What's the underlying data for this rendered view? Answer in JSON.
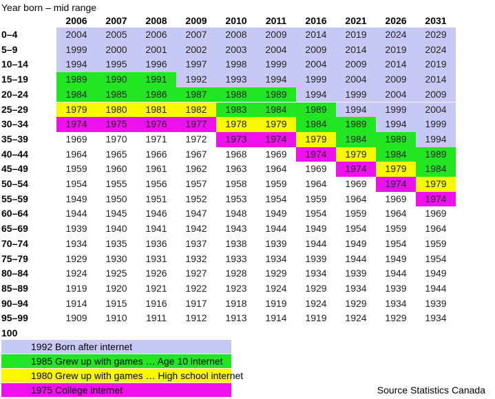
{
  "title": "Year born – mid range",
  "years": [
    "2006",
    "2007",
    "2008",
    "2009",
    "2010",
    "2011",
    "2016",
    "2021",
    "2026",
    "2031"
  ],
  "colors": {
    "lav": "#c8c8f4",
    "grn": "#22e622",
    "yel": "#f8f800",
    "mag": "#ee11ee"
  },
  "rows": [
    {
      "label": "0–4",
      "values": [
        "2004",
        "2005",
        "2006",
        "2007",
        "2008",
        "2009",
        "2014",
        "2019",
        "2024",
        "2029"
      ],
      "fills": [
        "lav",
        "lav",
        "lav",
        "lav",
        "lav",
        "lav",
        "lav",
        "lav",
        "lav",
        "lav"
      ]
    },
    {
      "label": "5–9",
      "values": [
        "1999",
        "2000",
        "2001",
        "2002",
        "2003",
        "2004",
        "2009",
        "2014",
        "2019",
        "2024"
      ],
      "fills": [
        "lav",
        "lav",
        "lav",
        "lav",
        "lav",
        "lav",
        "lav",
        "lav",
        "lav",
        "lav"
      ]
    },
    {
      "label": "10–14",
      "values": [
        "1994",
        "1995",
        "1996",
        "1997",
        "1998",
        "1999",
        "2004",
        "2009",
        "2014",
        "2019"
      ],
      "fills": [
        "lav",
        "lav",
        "lav",
        "lav",
        "lav",
        "lav",
        "lav",
        "lav",
        "lav",
        "lav"
      ]
    },
    {
      "label": "15–19",
      "values": [
        "1989",
        "1990",
        "1991",
        "1992",
        "1993",
        "1994",
        "1999",
        "2004",
        "2009",
        "2014"
      ],
      "fills": [
        "grn",
        "grn",
        "grn",
        "lav",
        "lav",
        "lav",
        "lav",
        "lav",
        "lav",
        "lav"
      ]
    },
    {
      "label": "20–24",
      "values": [
        "1984",
        "1985",
        "1986",
        "1987",
        "1988",
        "1989",
        "1994",
        "1999",
        "2004",
        "2009"
      ],
      "fills": [
        "grn",
        "grn",
        "grn",
        "grn",
        "grn",
        "grn",
        "lav",
        "lav",
        "lav",
        "lav"
      ]
    },
    {
      "label": "25–29",
      "values": [
        "1979",
        "1980",
        "1981",
        "1982",
        "1983",
        "1984",
        "1989",
        "1994",
        "1999",
        "2004"
      ],
      "fills": [
        "yel",
        "yel",
        "yel",
        "yel",
        "grn",
        "grn",
        "grn",
        "lav",
        "lav",
        "lav"
      ]
    },
    {
      "label": "30–34",
      "values": [
        "1974",
        "1975",
        "1976",
        "1977",
        "1978",
        "1979",
        "1984",
        "1989",
        "1994",
        "1999"
      ],
      "fills": [
        "mag",
        "mag",
        "mag",
        "mag",
        "yel",
        "yel",
        "grn",
        "grn",
        "lav",
        "lav"
      ]
    },
    {
      "label": "35–39",
      "values": [
        "1969",
        "1970",
        "1971",
        "1972",
        "1973",
        "1974",
        "1979",
        "1984",
        "1989",
        "1994"
      ],
      "fills": [
        "",
        "",
        "",
        "",
        "mag",
        "mag",
        "yel",
        "grn",
        "grn",
        "lav"
      ]
    },
    {
      "label": "40–44",
      "values": [
        "1964",
        "1965",
        "1966",
        "1967",
        "1968",
        "1969",
        "1974",
        "1979",
        "1984",
        "1989"
      ],
      "fills": [
        "",
        "",
        "",
        "",
        "",
        "",
        "mag",
        "yel",
        "grn",
        "grn"
      ]
    },
    {
      "label": "45–49",
      "values": [
        "1959",
        "1960",
        "1961",
        "1962",
        "1963",
        "1964",
        "1969",
        "1974",
        "1979",
        "1984"
      ],
      "fills": [
        "",
        "",
        "",
        "",
        "",
        "",
        "",
        "mag",
        "yel",
        "grn"
      ]
    },
    {
      "label": "50–54",
      "values": [
        "1954",
        "1955",
        "1956",
        "1957",
        "1958",
        "1959",
        "1964",
        "1969",
        "1974",
        "1979"
      ],
      "fills": [
        "",
        "",
        "",
        "",
        "",
        "",
        "",
        "",
        "mag",
        "yel"
      ]
    },
    {
      "label": "55–59",
      "values": [
        "1949",
        "1950",
        "1951",
        "1952",
        "1953",
        "1954",
        "1959",
        "1964",
        "1969",
        "1974"
      ],
      "fills": [
        "",
        "",
        "",
        "",
        "",
        "",
        "",
        "",
        "",
        "mag"
      ]
    },
    {
      "label": "60–64",
      "values": [
        "1944",
        "1945",
        "1946",
        "1947",
        "1948",
        "1949",
        "1954",
        "1959",
        "1964",
        "1969"
      ],
      "fills": [
        "",
        "",
        "",
        "",
        "",
        "",
        "",
        "",
        "",
        ""
      ]
    },
    {
      "label": "65–69",
      "values": [
        "1939",
        "1940",
        "1941",
        "1942",
        "1943",
        "1944",
        "1949",
        "1954",
        "1959",
        "1964"
      ],
      "fills": [
        "",
        "",
        "",
        "",
        "",
        "",
        "",
        "",
        "",
        ""
      ]
    },
    {
      "label": "70–74",
      "values": [
        "1934",
        "1935",
        "1936",
        "1937",
        "1938",
        "1939",
        "1944",
        "1949",
        "1954",
        "1959"
      ],
      "fills": [
        "",
        "",
        "",
        "",
        "",
        "",
        "",
        "",
        "",
        ""
      ]
    },
    {
      "label": "75–79",
      "values": [
        "1929",
        "1930",
        "1931",
        "1932",
        "1933",
        "1934",
        "1939",
        "1944",
        "1949",
        "1954"
      ],
      "fills": [
        "",
        "",
        "",
        "",
        "",
        "",
        "",
        "",
        "",
        ""
      ]
    },
    {
      "label": "80–84",
      "values": [
        "1924",
        "1925",
        "1926",
        "1927",
        "1928",
        "1929",
        "1934",
        "1939",
        "1944",
        "1949"
      ],
      "fills": [
        "",
        "",
        "",
        "",
        "",
        "",
        "",
        "",
        "",
        ""
      ]
    },
    {
      "label": "85–89",
      "values": [
        "1919",
        "1920",
        "1921",
        "1922",
        "1923",
        "1924",
        "1929",
        "1934",
        "1939",
        "1944"
      ],
      "fills": [
        "",
        "",
        "",
        "",
        "",
        "",
        "",
        "",
        "",
        ""
      ]
    },
    {
      "label": "90–94",
      "values": [
        "1914",
        "1915",
        "1916",
        "1917",
        "1918",
        "1919",
        "1924",
        "1929",
        "1934",
        "1939"
      ],
      "fills": [
        "",
        "",
        "",
        "",
        "",
        "",
        "",
        "",
        "",
        ""
      ]
    },
    {
      "label": "95–99",
      "values": [
        "1909",
        "1910",
        "1911",
        "1912",
        "1913",
        "1914",
        "1919",
        "1924",
        "1929",
        "1934"
      ],
      "fills": [
        "",
        "",
        "",
        "",
        "",
        "",
        "",
        "",
        "",
        ""
      ]
    },
    {
      "label": "100",
      "values": [],
      "fills": []
    }
  ],
  "legend": [
    {
      "text": "1992 Born after internet",
      "fill": "lav"
    },
    {
      "text": "1985 Grew up with games … Age 10 internet",
      "fill": "grn"
    },
    {
      "text": "1980 Grew up with games … High school internet",
      "fill": "yel"
    },
    {
      "text": "1975 College internet",
      "fill": "mag"
    }
  ],
  "source": "Source Statistics Canada"
}
